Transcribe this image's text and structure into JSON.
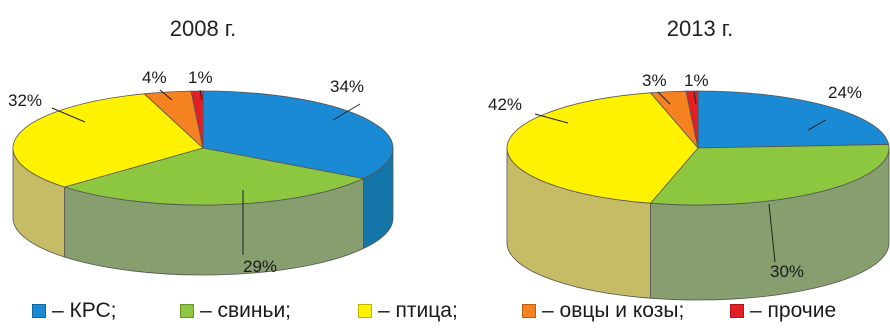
{
  "chart_data": [
    {
      "type": "pie",
      "title": "2008 г.",
      "categories": [
        "КРС",
        "свиньи",
        "птица",
        "овцы и козы",
        "прочие"
      ],
      "values": [
        34,
        29,
        32,
        4,
        1
      ],
      "labels": [
        "34%",
        "29%",
        "32%",
        "4%",
        "1%"
      ]
    },
    {
      "type": "pie",
      "title": "2013 г.",
      "categories": [
        "КРС",
        "свиньи",
        "птица",
        "овцы и козы",
        "прочие"
      ],
      "values": [
        24,
        30,
        42,
        3,
        1
      ],
      "labels": [
        "24%",
        "30%",
        "42%",
        "3%",
        "1%"
      ]
    }
  ],
  "legend": [
    {
      "label": "– КРС;",
      "color": "#1a8ad4"
    },
    {
      "label": "– свиньи;",
      "color": "#8dc63f"
    },
    {
      "label": "– птица;",
      "color": "#fff200"
    },
    {
      "label": "– овцы и козы;",
      "color": "#f58220"
    },
    {
      "label": "– прочие",
      "color": "#e31e24"
    }
  ],
  "side_colors": [
    "#1476a8",
    "#879f6e",
    "#c6bc66",
    "#c06a23",
    "#a8181c"
  ]
}
